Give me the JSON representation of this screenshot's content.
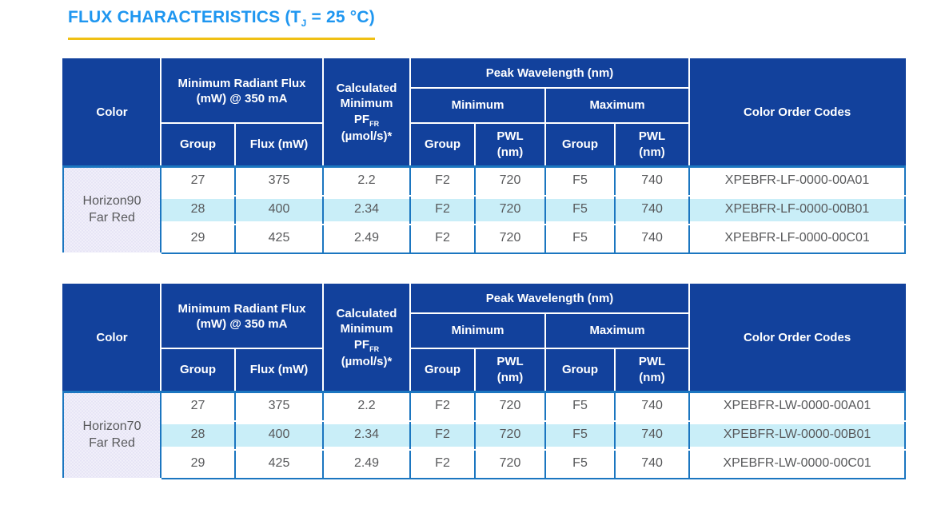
{
  "title": {
    "prefix": "FLUX CHARACTERISTICS (T",
    "subscript": "J",
    "suffix": " = 25 °C)"
  },
  "colors": {
    "title_blue": "#1E96F0",
    "underline_gold": "#F0C014",
    "header_navy": "#12419C",
    "body_border_blue": "#1B76C0",
    "highlight_cyan": "#C9EEF8",
    "color_cell_lavender": "#E5E3F5",
    "body_text_gray": "#58595B"
  },
  "table_header": {
    "color": "Color",
    "min_radiant_flux": "Minimum Radiant Flux\n(mW) @ 350 mA",
    "calc_min_prefix": "Calculated\nMinimum\nPF",
    "calc_min_sub": "FR",
    "calc_min_suffix": "(µmol/s)*",
    "peak_wavelength": "Peak Wavelength (nm)",
    "minimum": "Minimum",
    "maximum": "Maximum",
    "group": "Group",
    "flux_mw": "Flux (mW)",
    "pwl_nm": "PWL\n(nm)",
    "color_order_codes": "Color Order Codes"
  },
  "tables": [
    {
      "color_label": "Horizon90\nFar Red",
      "highlighted_row_index": 1,
      "rows": [
        [
          "27",
          "375",
          "2.2",
          "F2",
          "720",
          "F5",
          "740",
          "XPEBFR-LF-0000-00A01"
        ],
        [
          "28",
          "400",
          "2.34",
          "F2",
          "720",
          "F5",
          "740",
          "XPEBFR-LF-0000-00B01"
        ],
        [
          "29",
          "425",
          "2.49",
          "F2",
          "720",
          "F5",
          "740",
          "XPEBFR-LF-0000-00C01"
        ]
      ]
    },
    {
      "color_label": "Horizon70\nFar Red",
      "highlighted_row_index": 1,
      "rows": [
        [
          "27",
          "375",
          "2.2",
          "F2",
          "720",
          "F5",
          "740",
          "XPEBFR-LW-0000-00A01"
        ],
        [
          "28",
          "400",
          "2.34",
          "F2",
          "720",
          "F5",
          "740",
          "XPEBFR-LW-0000-00B01"
        ],
        [
          "29",
          "425",
          "2.49",
          "F2",
          "720",
          "F5",
          "740",
          "XPEBFR-LW-0000-00C01"
        ]
      ]
    }
  ]
}
